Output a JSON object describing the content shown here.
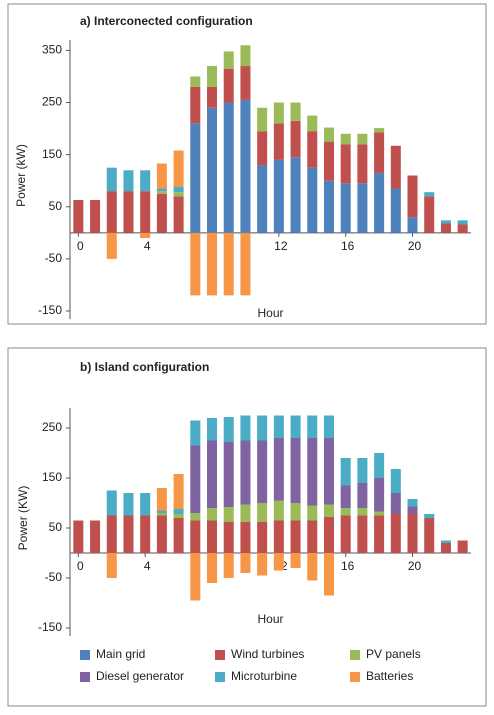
{
  "chart_data": [
    {
      "type": "bar",
      "stacked": true,
      "title": "a) Interconected configuration",
      "x_label": "Hour",
      "y_label": "Power (kW)",
      "x": [
        0,
        1,
        2,
        3,
        4,
        5,
        6,
        7,
        8,
        9,
        10,
        11,
        12,
        13,
        14,
        15,
        16,
        17,
        18,
        19,
        20,
        21,
        22,
        23
      ],
      "xlim": [
        -0.5,
        23.5
      ],
      "xticks": [
        0,
        4,
        8,
        12,
        16,
        20
      ],
      "ylim": [
        -150,
        370
      ],
      "yticks": [
        -150,
        -50,
        50,
        150,
        250,
        350
      ],
      "series": [
        {
          "color": "#4f81bd",
          "values": [
            0,
            0,
            0,
            0,
            0,
            0,
            0,
            210,
            240,
            250,
            255,
            130,
            140,
            145,
            125,
            100,
            95,
            95,
            115,
            85,
            30,
            0,
            0,
            0
          ]
        },
        {
          "color": "#c0504d",
          "values": [
            63,
            63,
            80,
            80,
            80,
            75,
            70,
            70,
            40,
            65,
            65,
            65,
            70,
            70,
            70,
            75,
            75,
            75,
            78,
            82,
            80,
            70,
            18,
            16
          ]
        },
        {
          "color": "#9bbb59",
          "values": [
            0,
            0,
            0,
            0,
            0,
            5,
            8,
            20,
            40,
            33,
            40,
            45,
            40,
            35,
            30,
            27,
            20,
            20,
            8,
            0,
            0,
            0,
            0,
            0
          ]
        },
        {
          "color": "#4bacc6",
          "values": [
            0,
            0,
            45,
            40,
            40,
            5,
            10,
            0,
            0,
            0,
            0,
            0,
            0,
            0,
            0,
            0,
            0,
            0,
            0,
            0,
            0,
            8,
            6,
            8
          ]
        },
        {
          "color": "#f79646",
          "values": [
            0,
            0,
            -50,
            0,
            -10,
            48,
            70,
            -120,
            -120,
            -120,
            -120,
            0,
            0,
            0,
            0,
            0,
            0,
            0,
            0,
            0,
            0,
            0,
            0,
            0
          ]
        }
      ]
    },
    {
      "type": "bar",
      "stacked": true,
      "title": "b) Island configuration",
      "x_label": "Hour",
      "y_label": "Power (KW)",
      "x": [
        0,
        1,
        2,
        3,
        4,
        5,
        6,
        7,
        8,
        9,
        10,
        11,
        12,
        13,
        14,
        15,
        16,
        17,
        18,
        19,
        20,
        21,
        22,
        23
      ],
      "xlim": [
        -0.5,
        23.5
      ],
      "xticks": [
        0,
        4,
        8,
        12,
        16,
        20
      ],
      "ylim": [
        -150,
        290
      ],
      "yticks": [
        -150,
        -50,
        50,
        150,
        250
      ],
      "series": [
        {
          "name": "Main grid",
          "color": "#4f81bd",
          "values": [
            0,
            0,
            0,
            0,
            0,
            0,
            0,
            0,
            0,
            0,
            0,
            0,
            0,
            0,
            0,
            0,
            0,
            0,
            0,
            0,
            0,
            0,
            0,
            0
          ]
        },
        {
          "name": "Wind turbines",
          "color": "#c0504d",
          "values": [
            65,
            65,
            75,
            75,
            75,
            75,
            70,
            65,
            65,
            62,
            62,
            62,
            65,
            65,
            65,
            72,
            75,
            75,
            75,
            78,
            78,
            70,
            20,
            25
          ]
        },
        {
          "name": "PV panels",
          "color": "#9bbb59",
          "values": [
            0,
            0,
            0,
            0,
            0,
            5,
            8,
            15,
            25,
            30,
            35,
            38,
            40,
            35,
            30,
            25,
            15,
            15,
            8,
            0,
            0,
            0,
            0,
            0
          ]
        },
        {
          "name": "Diesel generator",
          "color": "#8064a2",
          "values": [
            0,
            0,
            0,
            0,
            0,
            0,
            0,
            135,
            135,
            130,
            128,
            125,
            125,
            130,
            135,
            133,
            45,
            50,
            67,
            42,
            15,
            0,
            0,
            0
          ]
        },
        {
          "name": "Microturbine",
          "color": "#4bacc6",
          "values": [
            0,
            0,
            50,
            45,
            45,
            5,
            10,
            50,
            45,
            50,
            50,
            50,
            45,
            45,
            45,
            45,
            55,
            50,
            50,
            48,
            15,
            8,
            5,
            0
          ]
        },
        {
          "name": "Batteries",
          "color": "#f79646",
          "values": [
            0,
            0,
            -50,
            0,
            0,
            45,
            70,
            -95,
            -60,
            -50,
            -40,
            -45,
            -35,
            -30,
            -55,
            -85,
            0,
            0,
            0,
            0,
            0,
            0,
            0,
            0
          ]
        }
      ]
    }
  ]
}
